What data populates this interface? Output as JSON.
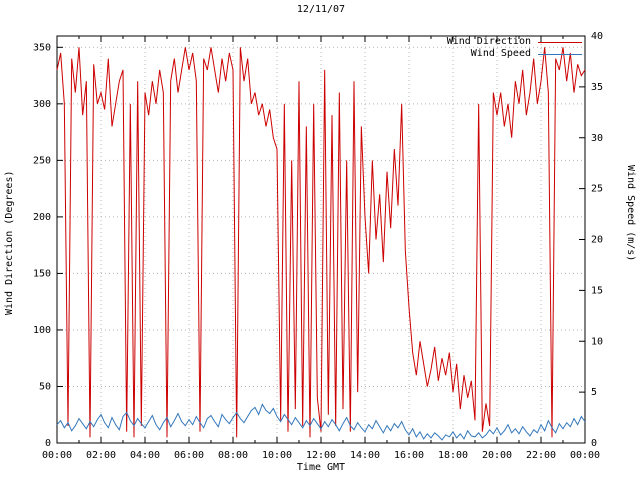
{
  "chart_data": {
    "type": "line",
    "title": "12/11/07",
    "xlabel": "Time GMT",
    "ylabel_left": "Wind Direction (Degrees)",
    "ylabel_right": "Wind Speed (m/s)",
    "ylim_left": [
      0,
      360
    ],
    "ylim_right": [
      0,
      40
    ],
    "y_left_ticks": [
      0,
      50,
      100,
      150,
      200,
      250,
      300,
      350
    ],
    "y_right_ticks": [
      0,
      5,
      10,
      15,
      20,
      25,
      30,
      35,
      40
    ],
    "x_tick_hours": [
      0,
      2,
      4,
      6,
      8,
      10,
      12,
      14,
      16,
      18,
      20,
      22,
      24
    ],
    "x_tick_labels": [
      "00:00",
      "02:00",
      "04:00",
      "06:00",
      "08:00",
      "10:00",
      "12:00",
      "14:00",
      "16:00",
      "18:00",
      "20:00",
      "22:00",
      "00:00"
    ],
    "x_start_hour": 0,
    "x_end_hour": 24,
    "step_minutes": 10,
    "grid_color": "#b4b4b4",
    "border_color": "#000000",
    "series": [
      {
        "name": "Wind Direction",
        "axis": "left",
        "color": "#cc0000",
        "values": [
          330,
          345,
          300,
          15,
          340,
          310,
          350,
          290,
          320,
          5,
          335,
          300,
          310,
          295,
          340,
          280,
          300,
          320,
          330,
          10,
          300,
          5,
          320,
          15,
          310,
          290,
          320,
          300,
          330,
          310,
          5,
          320,
          340,
          310,
          330,
          350,
          330,
          345,
          320,
          10,
          340,
          330,
          350,
          330,
          310,
          340,
          320,
          345,
          330,
          5,
          350,
          320,
          340,
          300,
          310,
          290,
          300,
          280,
          295,
          270,
          260,
          20,
          300,
          10,
          250,
          30,
          320,
          15,
          280,
          5,
          300,
          40,
          10,
          330,
          25,
          290,
          15,
          310,
          30,
          250,
          10,
          320,
          45,
          280,
          200,
          150,
          250,
          180,
          220,
          160,
          240,
          190,
          260,
          210,
          300,
          170,
          120,
          80,
          60,
          90,
          70,
          50,
          65,
          85,
          55,
          75,
          60,
          80,
          45,
          70,
          30,
          60,
          40,
          55,
          20,
          300,
          10,
          35,
          15,
          310,
          290,
          310,
          280,
          300,
          270,
          320,
          300,
          330,
          290,
          310,
          340,
          300,
          320,
          350,
          310,
          5,
          340,
          330,
          350,
          320,
          345,
          310,
          335,
          325,
          330
        ]
      },
      {
        "name": "Wind Speed",
        "axis": "right",
        "color": "#3377bb",
        "values": [
          1.8,
          2.2,
          1.5,
          2.0,
          1.2,
          1.7,
          2.4,
          1.9,
          1.4,
          2.1,
          1.6,
          2.3,
          2.8,
          2.0,
          1.5,
          2.5,
          1.8,
          1.3,
          2.6,
          3.0,
          2.2,
          1.7,
          2.4,
          1.9,
          1.5,
          2.1,
          2.7,
          1.8,
          1.3,
          2.0,
          2.5,
          1.6,
          2.2,
          2.9,
          2.1,
          1.7,
          2.3,
          1.8,
          2.6,
          2.0,
          1.5,
          2.4,
          2.7,
          2.1,
          1.6,
          2.8,
          2.3,
          1.9,
          2.5,
          3.0,
          2.4,
          2.0,
          2.6,
          3.2,
          3.5,
          2.8,
          3.8,
          3.2,
          2.9,
          3.4,
          2.6,
          2.1,
          2.8,
          2.3,
          1.8,
          2.5,
          2.0,
          1.5,
          2.2,
          1.7,
          2.4,
          1.9,
          1.4,
          2.1,
          1.6,
          2.3,
          1.8,
          1.2,
          1.9,
          2.5,
          1.7,
          1.3,
          2.0,
          1.5,
          1.1,
          1.8,
          1.4,
          2.2,
          1.6,
          1.0,
          1.7,
          1.2,
          1.9,
          1.5,
          2.1,
          1.3,
          0.8,
          1.4,
          0.6,
          1.1,
          0.4,
          0.9,
          0.5,
          1.0,
          0.7,
          0.3,
          0.8,
          0.6,
          1.1,
          0.5,
          0.9,
          0.4,
          1.2,
          0.7,
          0.6,
          1.0,
          0.5,
          0.8,
          1.3,
          0.9,
          1.5,
          0.8,
          1.2,
          1.8,
          1.0,
          1.4,
          0.9,
          1.6,
          1.1,
          0.7,
          1.3,
          1.0,
          1.8,
          1.2,
          2.2,
          1.5,
          1.0,
          1.9,
          1.4,
          2.0,
          1.6,
          2.4,
          1.8,
          2.6,
          2.1
        ]
      }
    ]
  }
}
